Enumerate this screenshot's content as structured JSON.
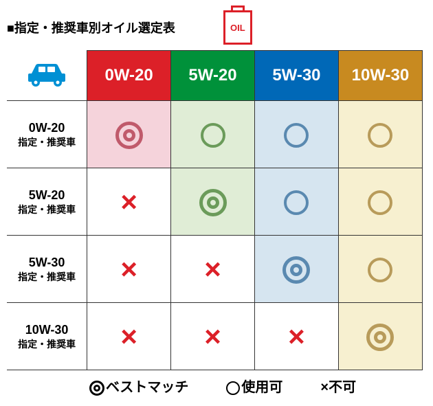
{
  "title": "■指定・推奨車別オイル選定表",
  "oil_label": "OIL",
  "columns": [
    {
      "label": "0W-20",
      "bg": "#dc2028"
    },
    {
      "label": "5W-20",
      "bg": "#00913a"
    },
    {
      "label": "5W-30",
      "bg": "#0068b7"
    },
    {
      "label": "10W-30",
      "bg": "#c88a20"
    }
  ],
  "rows": [
    {
      "grade": "0W-20",
      "sub": "指定・推奨車"
    },
    {
      "grade": "5W-20",
      "sub": "指定・推奨車"
    },
    {
      "grade": "5W-30",
      "sub": "指定・推奨車"
    },
    {
      "grade": "10W-30",
      "sub": "指定・推奨車"
    }
  ],
  "cells": [
    [
      {
        "sym": "double",
        "bg": "#f5d3db",
        "color": "#c05a6b"
      },
      {
        "sym": "single",
        "bg": "#e0edd6",
        "color": "#6b9b5a"
      },
      {
        "sym": "single",
        "bg": "#d6e5f0",
        "color": "#5a89b0"
      },
      {
        "sym": "single",
        "bg": "#f7f0d0",
        "color": "#b89b5a"
      }
    ],
    [
      {
        "sym": "x",
        "bg": "#ffffff"
      },
      {
        "sym": "double",
        "bg": "#e0edd6",
        "color": "#6b9b5a"
      },
      {
        "sym": "single",
        "bg": "#d6e5f0",
        "color": "#5a89b0"
      },
      {
        "sym": "single",
        "bg": "#f7f0d0",
        "color": "#b89b5a"
      }
    ],
    [
      {
        "sym": "x",
        "bg": "#ffffff"
      },
      {
        "sym": "x",
        "bg": "#ffffff"
      },
      {
        "sym": "double",
        "bg": "#d6e5f0",
        "color": "#5a89b0"
      },
      {
        "sym": "single",
        "bg": "#f7f0d0",
        "color": "#b89b5a"
      }
    ],
    [
      {
        "sym": "x",
        "bg": "#ffffff"
      },
      {
        "sym": "x",
        "bg": "#ffffff"
      },
      {
        "sym": "x",
        "bg": "#ffffff"
      },
      {
        "sym": "double",
        "bg": "#f7f0d0",
        "color": "#b89b5a"
      }
    ]
  ],
  "legend": {
    "best": "ベストマッチ",
    "ok": "使用可",
    "no": "不可",
    "x_char": "×"
  },
  "car_color": "#0090d4"
}
